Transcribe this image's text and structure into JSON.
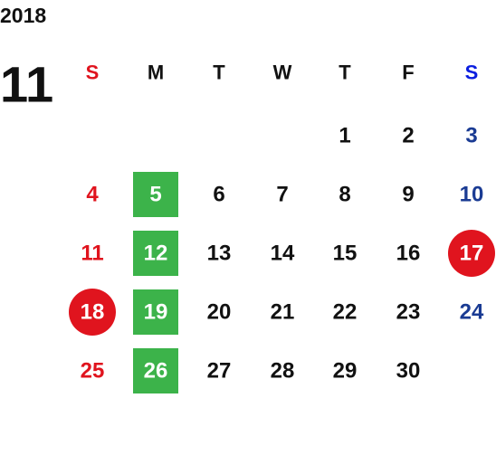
{
  "year": "2018",
  "month": "11",
  "weekdays": [
    "S",
    "M",
    "T",
    "W",
    "T",
    "F",
    "S"
  ],
  "weeks": [
    [
      null,
      null,
      null,
      null,
      1,
      2,
      3
    ],
    [
      4,
      5,
      6,
      7,
      8,
      9,
      10
    ],
    [
      11,
      12,
      13,
      14,
      15,
      16,
      17
    ],
    [
      18,
      19,
      20,
      21,
      22,
      23,
      24
    ],
    [
      25,
      26,
      27,
      28,
      29,
      30,
      null
    ]
  ]
}
